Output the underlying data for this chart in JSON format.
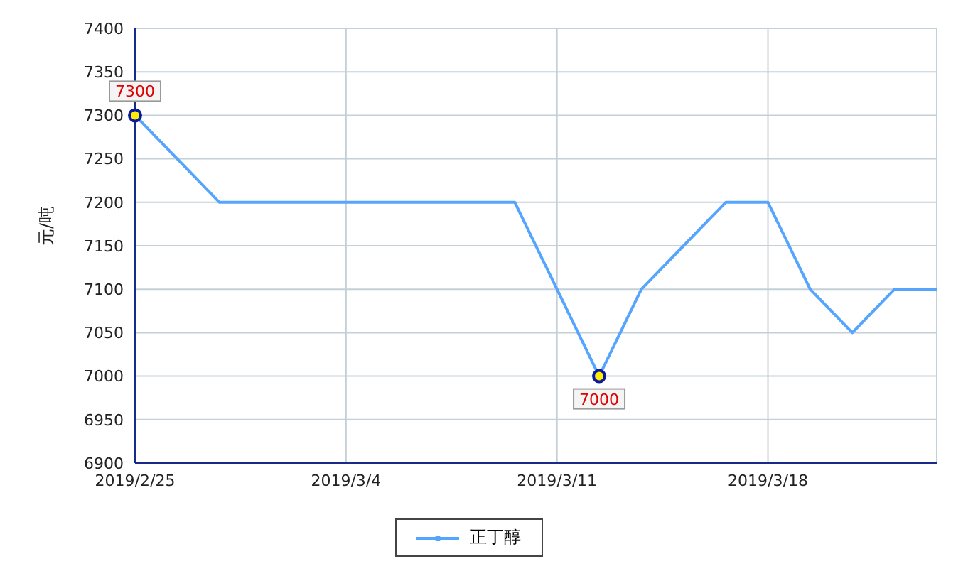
{
  "chart_data": {
    "type": "line",
    "ylabel": "元/吨",
    "categories": [
      "2019/2/25",
      null,
      null,
      null,
      null,
      "2019/3/4",
      null,
      null,
      null,
      null,
      "2019/3/11",
      null,
      null,
      null,
      null,
      "2019/3/18",
      null,
      null,
      null,
      null
    ],
    "series": [
      {
        "name": "正丁醇",
        "color": "#55a5ff",
        "values": [
          7300,
          7250,
          7200,
          7200,
          7200,
          7200,
          7200,
          7200,
          7200,
          7200,
          7100,
          7000,
          7100,
          7150,
          7200,
          7200,
          7100,
          7050,
          7100,
          7100
        ],
        "value_labels": [
          "7300",
          null,
          null,
          null,
          null,
          null,
          null,
          null,
          null,
          null,
          null,
          "7000",
          null,
          null,
          null,
          null,
          null,
          null,
          null,
          null
        ]
      }
    ],
    "ylim": [
      6900,
      7400
    ],
    "yticks": [
      6900,
      6950,
      7000,
      7050,
      7100,
      7150,
      7200,
      7250,
      7300,
      7350,
      7400
    ],
    "grid": true,
    "legend": "bottom"
  }
}
